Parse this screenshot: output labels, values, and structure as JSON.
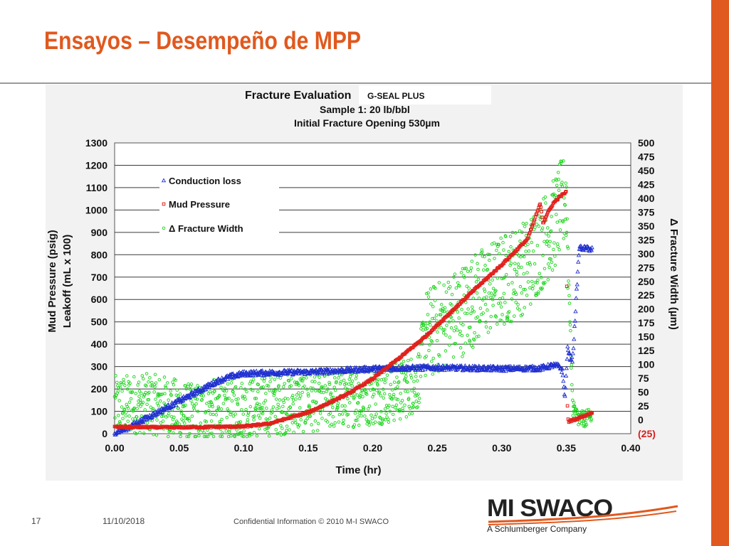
{
  "slide": {
    "title": "Ensayos – Desempeño de MPP",
    "accent_color": "#e0591e"
  },
  "footer": {
    "page_number": "17",
    "date": "11/10/2018",
    "confidential": "Confidential Information  © 2010 M-I SWACO"
  },
  "logo": {
    "wordmark": "MI SWACO",
    "tagline": "A Schlumberger Company"
  },
  "chart_data": {
    "type": "scatter",
    "title": "Fracture Evaluation",
    "product_label": "G-SEAL PLUS",
    "subtitle_1": "Sample 1: 20 lb/bbl",
    "subtitle_2": "Initial Fracture Opening 530µm",
    "xlabel": "Time (hr)",
    "ylabel_1": "Mud Pressure (psig)",
    "ylabel_2": "Leakoff (mL x 100)",
    "y2label": "Δ Fracture Width (µm)",
    "xlim": [
      0,
      0.4
    ],
    "ylim": [
      0,
      1300
    ],
    "y2lim": [
      -25,
      500
    ],
    "x_ticks": [
      "0.00",
      "0.05",
      "0.10",
      "0.15",
      "0.20",
      "0.25",
      "0.30",
      "0.35",
      "0.40"
    ],
    "y_ticks": [
      "0",
      "100",
      "200",
      "300",
      "400",
      "500",
      "600",
      "700",
      "800",
      "900",
      "1000",
      "1100",
      "1200",
      "1300"
    ],
    "y2_ticks": [
      "(25)",
      "0",
      "25",
      "50",
      "75",
      "100",
      "125",
      "150",
      "175",
      "200",
      "225",
      "250",
      "275",
      "300",
      "325",
      "350",
      "375",
      "400",
      "425",
      "450",
      "475",
      "500"
    ],
    "grid": "horizontal",
    "legend_position": "top-left",
    "series": [
      {
        "name": "Conduction loss",
        "axis": "left",
        "color": "#1f2fd0",
        "marker": "triangle",
        "x": [
          0.0,
          0.01,
          0.02,
          0.03,
          0.04,
          0.05,
          0.06,
          0.07,
          0.08,
          0.09,
          0.1,
          0.12,
          0.15,
          0.18,
          0.2,
          0.22,
          0.25,
          0.28,
          0.3,
          0.33,
          0.34,
          0.345,
          0.347,
          0.349,
          0.351,
          0.353,
          0.355,
          0.36,
          0.37
        ],
        "y": [
          5,
          25,
          55,
          85,
          115,
          145,
          175,
          205,
          235,
          255,
          268,
          272,
          275,
          283,
          290,
          292,
          295,
          292,
          290,
          292,
          305,
          300,
          280,
          160,
          380,
          340,
          330,
          830,
          825
        ]
      },
      {
        "name": "Mud Pressure",
        "axis": "left",
        "color": "#e0201c",
        "marker": "square",
        "x": [
          0.0,
          0.05,
          0.1,
          0.12,
          0.15,
          0.18,
          0.2,
          0.22,
          0.24,
          0.26,
          0.28,
          0.3,
          0.32,
          0.33,
          0.332,
          0.335,
          0.34,
          0.345,
          0.35,
          0.351,
          0.352,
          0.36,
          0.37
        ],
        "y": [
          30,
          28,
          32,
          45,
          95,
          175,
          245,
          335,
          430,
          540,
          650,
          755,
          870,
          1030,
          940,
          980,
          1030,
          1060,
          1080,
          70,
          55,
          70,
          95
        ]
      },
      {
        "name": "Δ Fracture Width",
        "axis": "right",
        "color": "#18d418",
        "marker": "circle",
        "x": [
          0.0,
          0.02,
          0.04,
          0.06,
          0.08,
          0.1,
          0.12,
          0.14,
          0.16,
          0.18,
          0.2,
          0.22,
          0.235,
          0.24,
          0.25,
          0.26,
          0.28,
          0.3,
          0.32,
          0.34,
          0.345,
          0.35,
          0.355,
          0.36,
          0.37
        ],
        "y": [
          25,
          30,
          25,
          10,
          20,
          20,
          25,
          30,
          35,
          40,
          45,
          50,
          70,
          150,
          165,
          180,
          220,
          250,
          280,
          350,
          380,
          400,
          20,
          0,
          5
        ]
      }
    ]
  }
}
